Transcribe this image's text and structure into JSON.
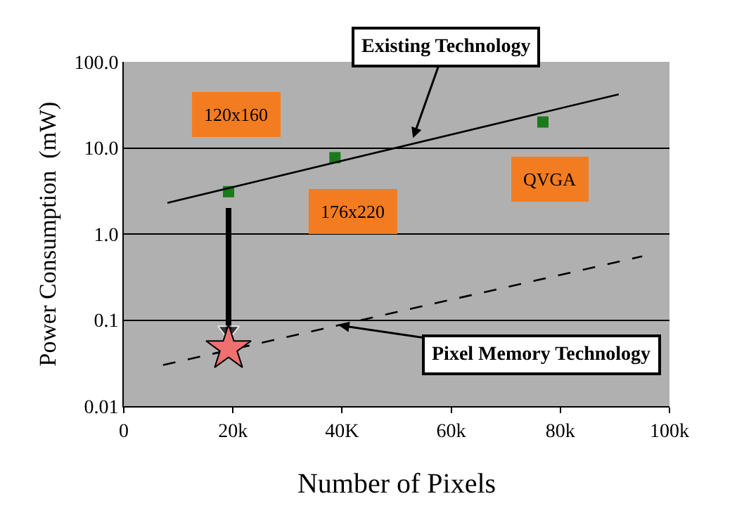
{
  "chart_data": {
    "type": "scatter",
    "xlabel": "Number of Pixels",
    "ylabel": "Power Consumption  (mW)",
    "log": "y",
    "grid": "y",
    "legend": false,
    "xlim": [
      0,
      100000
    ],
    "xticks": [
      0,
      {
        "value": 20000,
        "label": "20k"
      },
      {
        "value": 40000,
        "label": "40K"
      },
      {
        "value": 60000,
        "label": "60k"
      },
      {
        "value": 80000,
        "label": "80k"
      },
      {
        "value": 100000,
        "label": "100k"
      }
    ],
    "ylim": [
      0.01,
      100
    ],
    "yticks": [
      0.01,
      0.1,
      {
        "value": 1,
        "label": "1.0"
      },
      {
        "value": 10,
        "label": "10.0"
      },
      {
        "value": 100,
        "label": "100.0"
      }
    ],
    "series": [
      {
        "marker": "square",
        "color": "#1b7a1b",
        "x": [
          19200,
          38700,
          76800
        ],
        "values": [
          3.1,
          7.7,
          20
        ]
      },
      {
        "type": "line",
        "marker": "none",
        "line_style": "solid",
        "color": "#000000",
        "x": [
          8000,
          90700
        ],
        "values": [
          2.3,
          42
        ]
      },
      {
        "type": "line",
        "marker": "none",
        "line_style": "dashed",
        "color": "#000000",
        "x": [
          7200,
          95000
        ],
        "values": [
          0.03,
          0.55
        ]
      },
      {
        "type": "line",
        "marker": "triangle",
        "line_style": "solid",
        "color": "#000000",
        "x": [
          19200,
          19200
        ],
        "values": [
          2.0,
          0.075
        ]
      },
      {
        "marker": "star",
        "color": "#f07070",
        "x": [
          19200
        ],
        "values": [
          0.047
        ]
      }
    ],
    "annotations": [
      "120x160",
      "176x220",
      "QVGA",
      {
        "text": "Existing Technology",
        "x": 53000,
        "y": 13
      },
      {
        "text": "Pixel Memory Technology",
        "x": 39400,
        "y": 0.087
      }
    ]
  }
}
